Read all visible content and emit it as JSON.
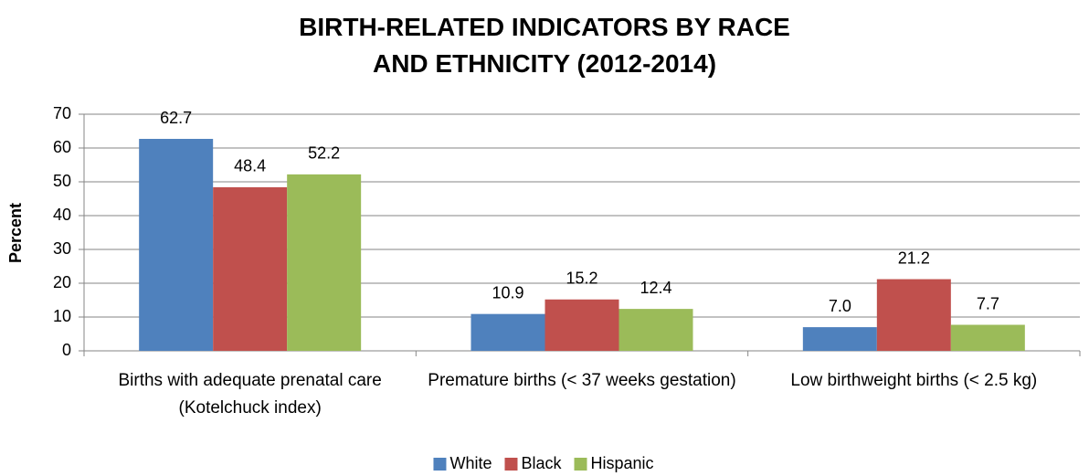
{
  "chart_data": {
    "type": "bar",
    "title": "BIRTH-RELATED INDICATORS BY RACE AND ETHNICITY (2012-2014)",
    "y_label": "Percent",
    "categories": [
      "Births with adequate prenatal care (Kotelchuck index)",
      "Premature births (< 37 weeks gestation)",
      "Low birthweight births (< 2.5 kg)"
    ],
    "series": [
      {
        "name": "White",
        "color": "#4f81bd",
        "values": [
          62.7,
          10.9,
          7.0
        ],
        "value_labels": [
          "62.7",
          "10.9",
          "7.0"
        ]
      },
      {
        "name": "Black",
        "color": "#c0504d",
        "values": [
          48.4,
          15.2,
          21.2
        ],
        "value_labels": [
          "48.4",
          "15.2",
          "21.2"
        ]
      },
      {
        "name": "Hispanic",
        "color": "#9bbb59",
        "values": [
          52.2,
          12.4,
          7.7
        ],
        "value_labels": [
          "52.2",
          "12.4",
          "7.7"
        ]
      }
    ],
    "ylim": [
      0,
      70
    ],
    "yticks": [
      0,
      10,
      20,
      30,
      40,
      50,
      60,
      70
    ],
    "grid": true,
    "legend": "bottom"
  }
}
